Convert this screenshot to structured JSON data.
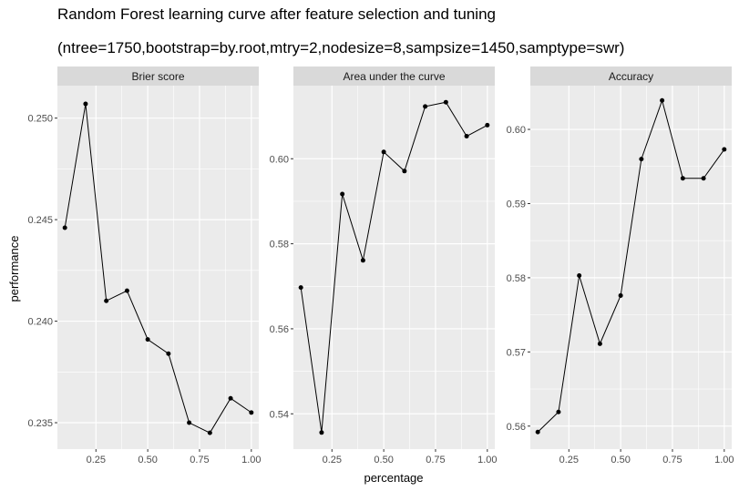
{
  "chart_data": {
    "type": "line",
    "title": "Random Forest learning curve after feature selection and tuning",
    "subtitle": "(ntree=1750,bootstrap=by.root,mtry=2,nodesize=8,sampsize=1450,samptype=swr)",
    "xlabel": "percentage",
    "ylabel": "performance",
    "x": [
      0.1,
      0.2,
      0.3,
      0.4,
      0.5,
      0.6,
      0.7,
      0.8,
      0.9,
      1.0
    ],
    "xlim": [
      0.064,
      1.036
    ],
    "xticks": [
      0.25,
      0.5,
      0.75,
      1.0
    ],
    "xtick_labels": [
      "0.25",
      "0.50",
      "0.75",
      "1.00"
    ],
    "grid": true,
    "panels": [
      {
        "strip": "Brier score",
        "values": [
          0.2446,
          0.2507,
          0.241,
          0.2415,
          0.2391,
          0.2384,
          0.235,
          0.2345,
          0.2362,
          0.2355
        ],
        "ylim": [
          0.2337,
          0.2516
        ],
        "yticks": [
          0.235,
          0.24,
          0.245,
          0.25
        ],
        "ytick_labels": [
          "0.235",
          "0.240",
          "0.245",
          "0.250"
        ]
      },
      {
        "strip": "Area under the curve",
        "values": [
          0.5697,
          0.5356,
          0.5917,
          0.5761,
          0.6016,
          0.5971,
          0.6123,
          0.6133,
          0.6053,
          0.6079
        ],
        "ylim": [
          0.5317,
          0.6172
        ],
        "yticks": [
          0.54,
          0.56,
          0.58,
          0.6
        ],
        "ytick_labels": [
          "0.54",
          "0.56",
          "0.58",
          "0.60"
        ]
      },
      {
        "strip": "Accuracy",
        "values": [
          0.5592,
          0.5619,
          0.5803,
          0.5711,
          0.5776,
          0.596,
          0.6039,
          0.5934,
          0.5934,
          0.5973
        ],
        "ylim": [
          0.5569,
          0.6059
        ],
        "yticks": [
          0.56,
          0.57,
          0.58,
          0.59,
          0.6
        ],
        "ytick_labels": [
          "0.56",
          "0.57",
          "0.58",
          "0.59",
          "0.60"
        ]
      }
    ]
  }
}
